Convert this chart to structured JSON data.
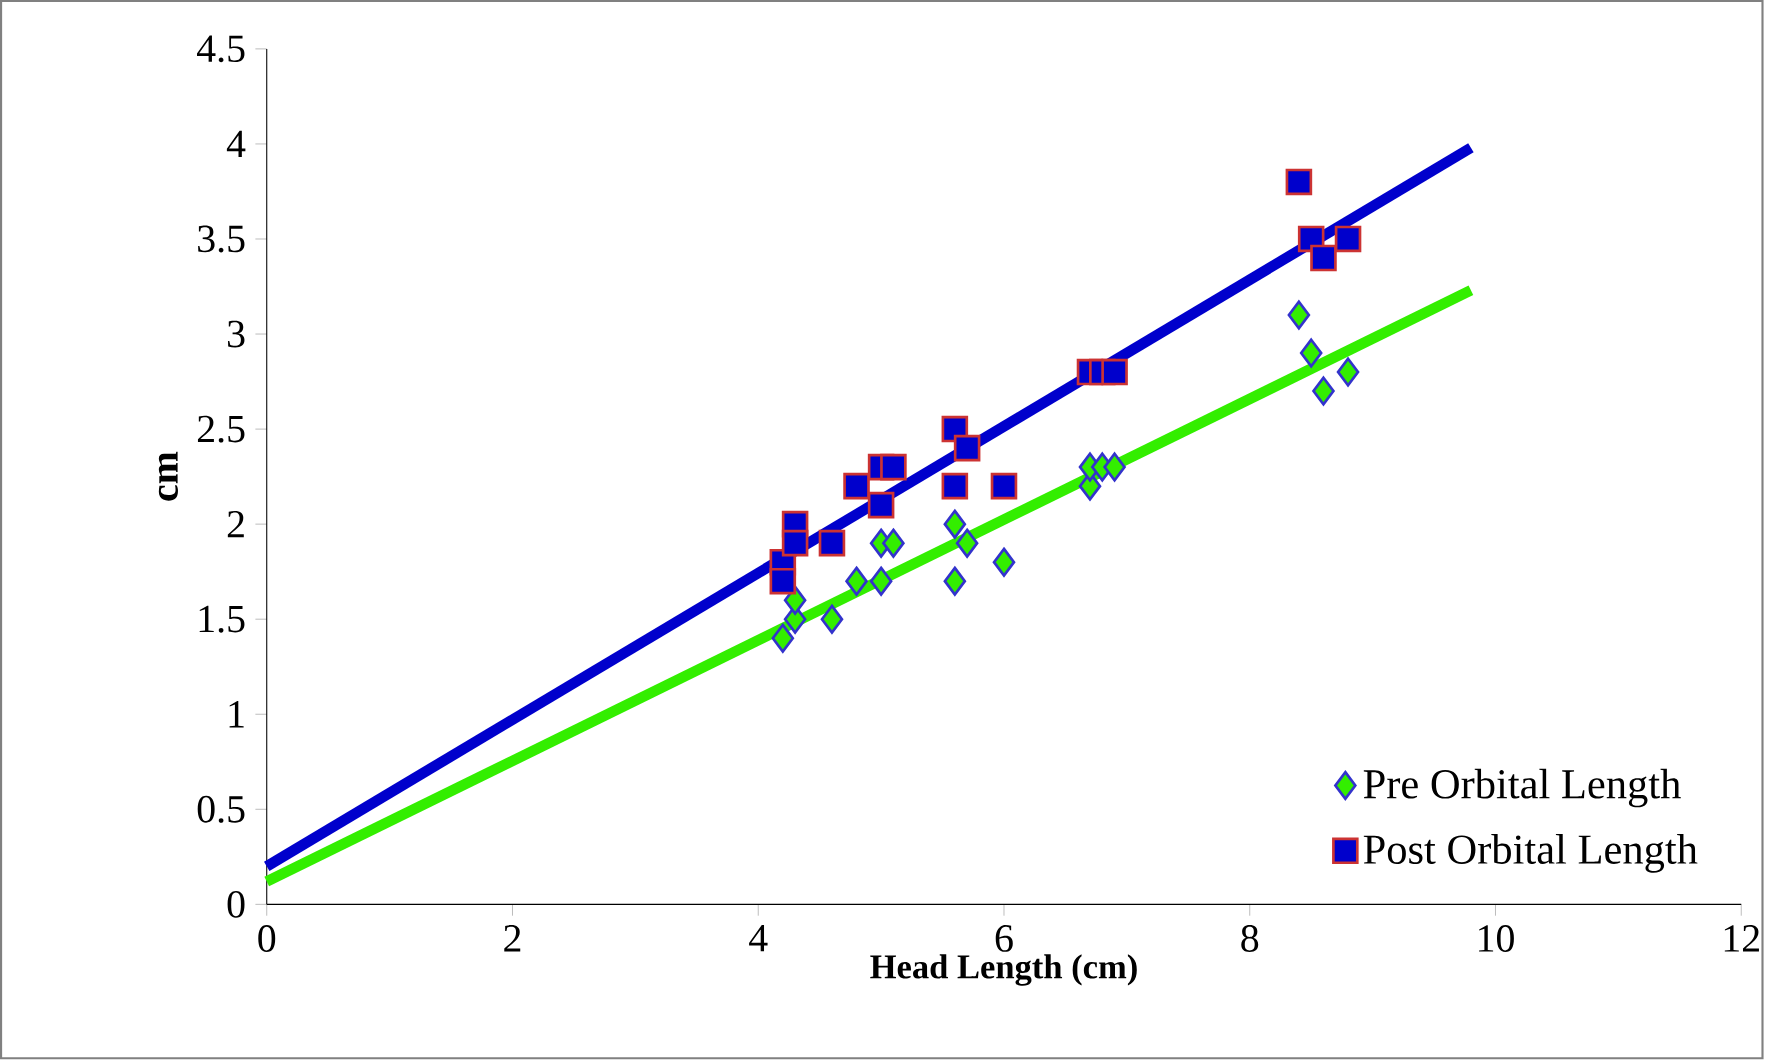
{
  "chart_data": {
    "type": "scatter",
    "xlabel": "Head Length (cm)",
    "ylabel": "cm",
    "xlim": [
      0,
      12
    ],
    "xticks": [
      0,
      2,
      4,
      6,
      8,
      10,
      12
    ],
    "ylim": [
      0,
      4.5
    ],
    "yticks": [
      0,
      0.5,
      1,
      1.5,
      2,
      2.5,
      3,
      3.5,
      4,
      4.5
    ],
    "grid": false,
    "legend": "bottom right",
    "series": [
      {
        "name": "Pre Orbital Length",
        "color": "#33ee00",
        "marker": "diamond",
        "x": [
          4.2,
          4.3,
          4.3,
          4.6,
          4.8,
          5.0,
          5.0,
          5.1,
          5.6,
          5.6,
          5.7,
          6.0,
          6.7,
          6.7,
          6.8,
          6.9,
          8.4,
          8.5,
          8.6,
          8.8
        ],
        "values": [
          1.4,
          1.5,
          1.6,
          1.5,
          1.7,
          1.7,
          1.9,
          1.9,
          1.7,
          2.0,
          1.9,
          1.8,
          2.2,
          2.3,
          2.3,
          2.3,
          3.1,
          2.9,
          2.7,
          2.8
        ]
      },
      {
        "name": "Post Orbital Length",
        "color": "#0000cc",
        "marker": "square",
        "x": [
          4.2,
          4.2,
          4.3,
          4.3,
          4.6,
          4.8,
          5.0,
          5.0,
          5.1,
          5.6,
          5.6,
          5.7,
          6.0,
          6.7,
          6.8,
          6.9,
          8.4,
          8.5,
          8.6,
          8.8
        ],
        "values": [
          1.8,
          1.7,
          2.0,
          1.9,
          1.9,
          2.2,
          2.1,
          2.3,
          2.3,
          2.5,
          2.2,
          2.4,
          2.2,
          2.8,
          2.8,
          2.8,
          3.8,
          3.5,
          3.4,
          3.5
        ]
      },
      {
        "type": "line",
        "color": "#0000cc",
        "marker": "none",
        "x": [
          0,
          9.8
        ],
        "values": [
          0.2,
          3.98
        ]
      },
      {
        "type": "line",
        "color": "#33ee00",
        "marker": "none",
        "x": [
          0,
          9.8
        ],
        "values": [
          0.12,
          3.23
        ]
      }
    ]
  }
}
